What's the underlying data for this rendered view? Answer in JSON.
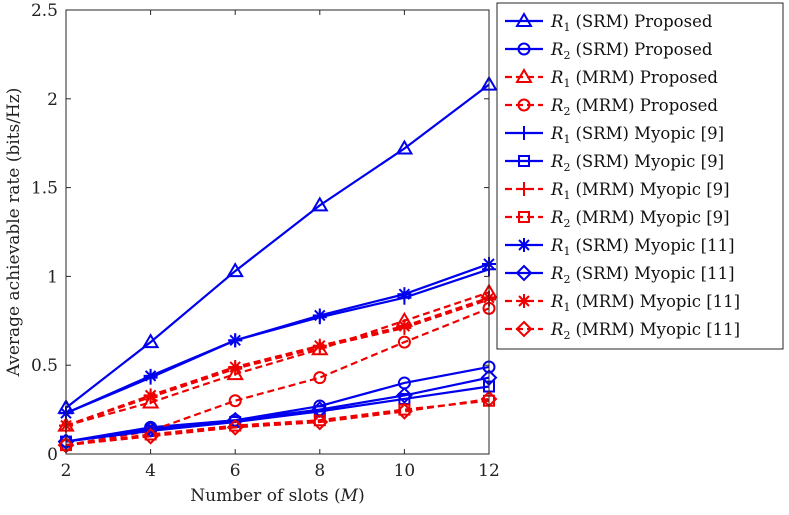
{
  "chart_data": {
    "type": "line",
    "xlabel": "Number of slots (M)",
    "xlabel_prefix": "Number of slots (",
    "xlabel_var": "M",
    "xlabel_suffix": ")",
    "ylabel": "Average achievable rate (bits/Hz)",
    "xlim": [
      2,
      12
    ],
    "ylim": [
      0,
      2.5
    ],
    "xticks": [
      2,
      4,
      6,
      8,
      10,
      12
    ],
    "yticks": [
      0,
      0.5,
      1,
      1.5,
      2,
      2.5
    ],
    "ytick_labels": [
      "0",
      "0.5",
      "1",
      "1.5",
      "2",
      "2.5"
    ],
    "grid": false,
    "legend_position": "outside-right",
    "x": [
      2,
      4,
      6,
      8,
      10,
      12
    ],
    "colors": {
      "blue": "#0000ee",
      "red": "#ee0000"
    },
    "series": [
      {
        "name": "R1 (SRM) Proposed",
        "var": "R",
        "sub": "1",
        "label": "(SRM) Proposed",
        "color": "#0000ee",
        "dash": false,
        "marker": "triangle",
        "values": [
          0.26,
          0.63,
          1.03,
          1.4,
          1.72,
          2.08
        ]
      },
      {
        "name": "R2 (SRM) Proposed",
        "var": "R",
        "sub": "2",
        "label": "(SRM) Proposed",
        "color": "#0000ee",
        "dash": false,
        "marker": "circle",
        "values": [
          0.07,
          0.15,
          0.19,
          0.27,
          0.4,
          0.49
        ]
      },
      {
        "name": "R1 (MRM) Proposed",
        "var": "R",
        "sub": "1",
        "label": "(MRM) Proposed",
        "color": "#ee0000",
        "dash": true,
        "marker": "triangle",
        "values": [
          0.16,
          0.29,
          0.45,
          0.59,
          0.75,
          0.91
        ]
      },
      {
        "name": "R2 (MRM) Proposed",
        "var": "R",
        "sub": "2",
        "label": "(MRM) Proposed",
        "color": "#ee0000",
        "dash": true,
        "marker": "circle",
        "values": [
          0.05,
          0.13,
          0.3,
          0.43,
          0.63,
          0.82
        ]
      },
      {
        "name": "R1 (SRM) Myopic [9]",
        "var": "R",
        "sub": "1",
        "label": "(SRM) Myopic [9]",
        "color": "#0000ee",
        "dash": false,
        "marker": "plus",
        "values": [
          0.23,
          0.43,
          0.64,
          0.77,
          0.88,
          1.04
        ]
      },
      {
        "name": "R2 (SRM) Myopic [9]",
        "var": "R",
        "sub": "2",
        "label": "(SRM) Myopic [9]",
        "color": "#0000ee",
        "dash": false,
        "marker": "square",
        "values": [
          0.07,
          0.13,
          0.18,
          0.24,
          0.31,
          0.38
        ]
      },
      {
        "name": "R1 (MRM) Myopic [9]",
        "var": "R",
        "sub": "1",
        "label": "(MRM) Myopic [9]",
        "color": "#ee0000",
        "dash": true,
        "marker": "plus",
        "values": [
          0.16,
          0.32,
          0.48,
          0.6,
          0.71,
          0.87
        ]
      },
      {
        "name": "R2 (MRM) Myopic [9]",
        "var": "R",
        "sub": "2",
        "label": "(MRM) Myopic [9]",
        "color": "#ee0000",
        "dash": true,
        "marker": "square",
        "values": [
          0.05,
          0.11,
          0.16,
          0.19,
          0.25,
          0.3
        ]
      },
      {
        "name": "R1 (SRM) Myopic [11]",
        "var": "R",
        "sub": "1",
        "label": "(SRM) Myopic [11]",
        "color": "#0000ee",
        "dash": false,
        "marker": "asterisk",
        "values": [
          0.23,
          0.44,
          0.64,
          0.78,
          0.9,
          1.07
        ]
      },
      {
        "name": "R2 (SRM) Myopic [11]",
        "var": "R",
        "sub": "2",
        "label": "(SRM) Myopic [11]",
        "color": "#0000ee",
        "dash": false,
        "marker": "diamond",
        "values": [
          0.07,
          0.14,
          0.19,
          0.25,
          0.33,
          0.43
        ]
      },
      {
        "name": "R1 (MRM) Myopic [11]",
        "var": "R",
        "sub": "1",
        "label": "(MRM) Myopic [11]",
        "color": "#ee0000",
        "dash": true,
        "marker": "asterisk",
        "values": [
          0.16,
          0.33,
          0.49,
          0.61,
          0.72,
          0.88
        ]
      },
      {
        "name": "R2 (MRM) Myopic [11]",
        "var": "R",
        "sub": "2",
        "label": "(MRM) Myopic [11]",
        "color": "#ee0000",
        "dash": true,
        "marker": "diamond",
        "values": [
          0.05,
          0.1,
          0.15,
          0.18,
          0.24,
          0.31
        ]
      }
    ]
  }
}
